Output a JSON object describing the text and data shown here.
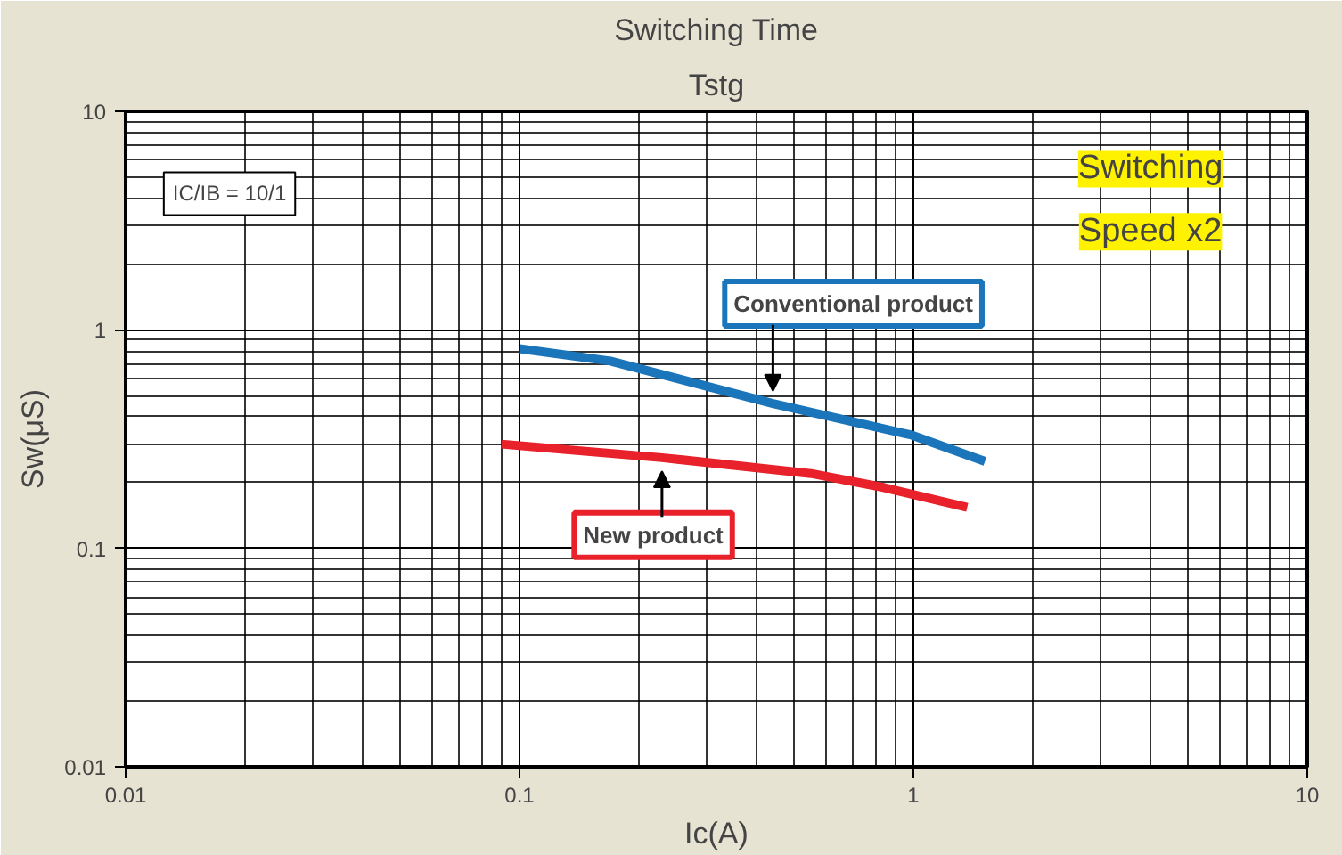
{
  "chart_data": {
    "type": "line",
    "title": "Switching Time",
    "subtitle": "Tstg",
    "xlabel": "Ic(A)",
    "ylabel": "Sw(μS)",
    "log": "xy",
    "grid": true,
    "xlim": [
      0.01,
      10
    ],
    "ylim": [
      0.01,
      10
    ],
    "xticks": [
      0.01,
      0.1,
      1,
      10
    ],
    "yticks": [
      0.01,
      0.1,
      1,
      10
    ],
    "series": [
      {
        "color": "#1a75bb",
        "x": [
          0.1,
          0.17,
          0.44,
          0.99,
          1.52
        ],
        "values": [
          0.82,
          0.72,
          0.46,
          0.33,
          0.25
        ]
      },
      {
        "color": "#e8212a",
        "x": [
          0.09,
          0.23,
          0.55,
          0.84,
          1.37
        ],
        "values": [
          0.3,
          0.26,
          0.22,
          0.19,
          0.154
        ]
      }
    ],
    "annotations": [
      "IC/IB = 10/1",
      {
        "text": "Conventional product",
        "x": 0.44,
        "y": 0.47
      },
      {
        "text": "New product",
        "x": 0.23,
        "y": 0.23
      },
      "Switching Speed x2"
    ]
  }
}
